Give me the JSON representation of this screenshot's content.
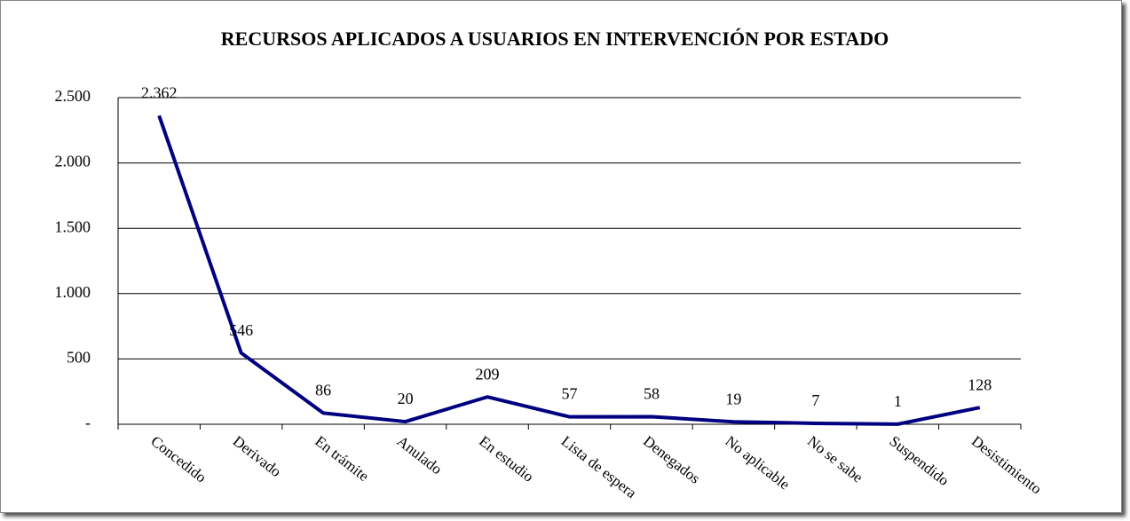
{
  "chart_data": {
    "type": "line",
    "title": "RECURSOS APLICADOS A USUARIOS EN INTERVENCIÓN POR ESTADO",
    "categories": [
      "Concedido",
      "Derivado",
      "En trámite",
      "Anulado",
      "En estudio",
      "Lista de espera",
      "Denegados",
      "No aplicable",
      "No se sabe",
      "Suspendido",
      "Desistimiento"
    ],
    "values": [
      2362,
      546,
      86,
      20,
      209,
      57,
      58,
      19,
      7,
      1,
      128
    ],
    "value_labels": [
      "2.362",
      "546",
      "86",
      "20",
      "209",
      "57",
      "58",
      "19",
      "7",
      "1",
      "128"
    ],
    "color": "#000080",
    "ylim": [
      0,
      2500
    ],
    "yticks": [
      {
        "value": 0,
        "label": "-"
      },
      500,
      {
        "value": 1000,
        "label": "1.000"
      },
      {
        "value": 1500,
        "label": "1.500"
      },
      {
        "value": 2000,
        "label": "2.000"
      },
      {
        "value": 2500,
        "label": "2.500"
      }
    ],
    "grid": true
  }
}
